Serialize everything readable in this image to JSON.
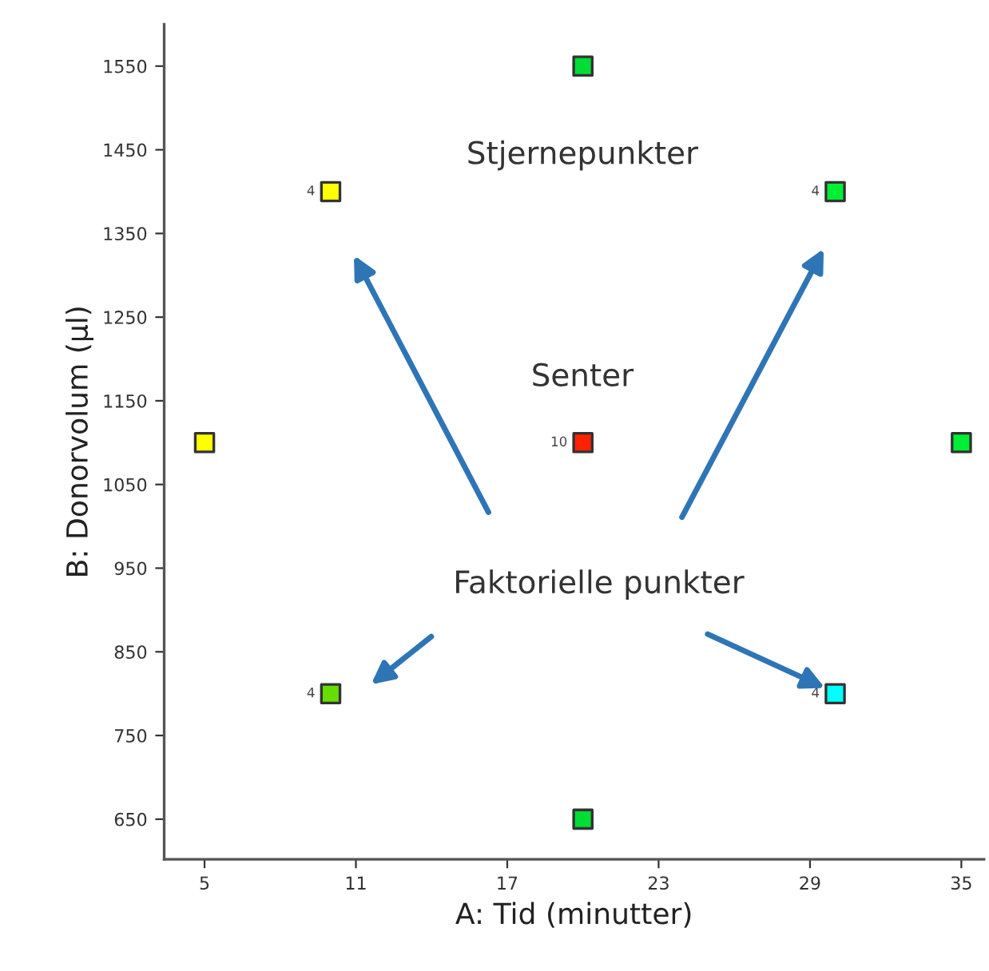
{
  "chart_data": {
    "type": "scatter",
    "xlabel": "A: Tid (minutter)",
    "ylabel": "B: Donorvolum (µl)",
    "x": [
      20,
      10,
      30,
      5,
      20,
      35,
      10,
      30,
      20
    ],
    "values": [
      1550,
      1400,
      1400,
      1100,
      1100,
      1100,
      800,
      800,
      650
    ],
    "colors": [
      "#00dd33",
      "#ffff00",
      "#00ee33",
      "#ffff00",
      "#ff2200",
      "#00ee33",
      "#66dd00",
      "#00ffff",
      "#00dd33"
    ],
    "marker": "square",
    "grid": false,
    "legend": false,
    "xlim": [
      3.4,
      35.9
    ],
    "xticks": [
      5,
      11,
      17,
      23,
      29,
      35
    ],
    "ylim": [
      602,
      1600
    ],
    "yticks": [
      650,
      750,
      850,
      950,
      1050,
      1150,
      1250,
      1350,
      1450,
      1550
    ],
    "annotations": [
      "Stjernepunkter",
      "Senter",
      "Faktorielle punkter",
      {
        "text": "4",
        "x": 10,
        "y": 1400
      },
      {
        "text": "4",
        "x": 30,
        "y": 1400
      },
      {
        "text": "10",
        "x": 20,
        "y": 1100
      },
      {
        "text": "4",
        "x": 10,
        "y": 800
      },
      {
        "text": "4",
        "x": 30,
        "y": 800
      }
    ]
  }
}
